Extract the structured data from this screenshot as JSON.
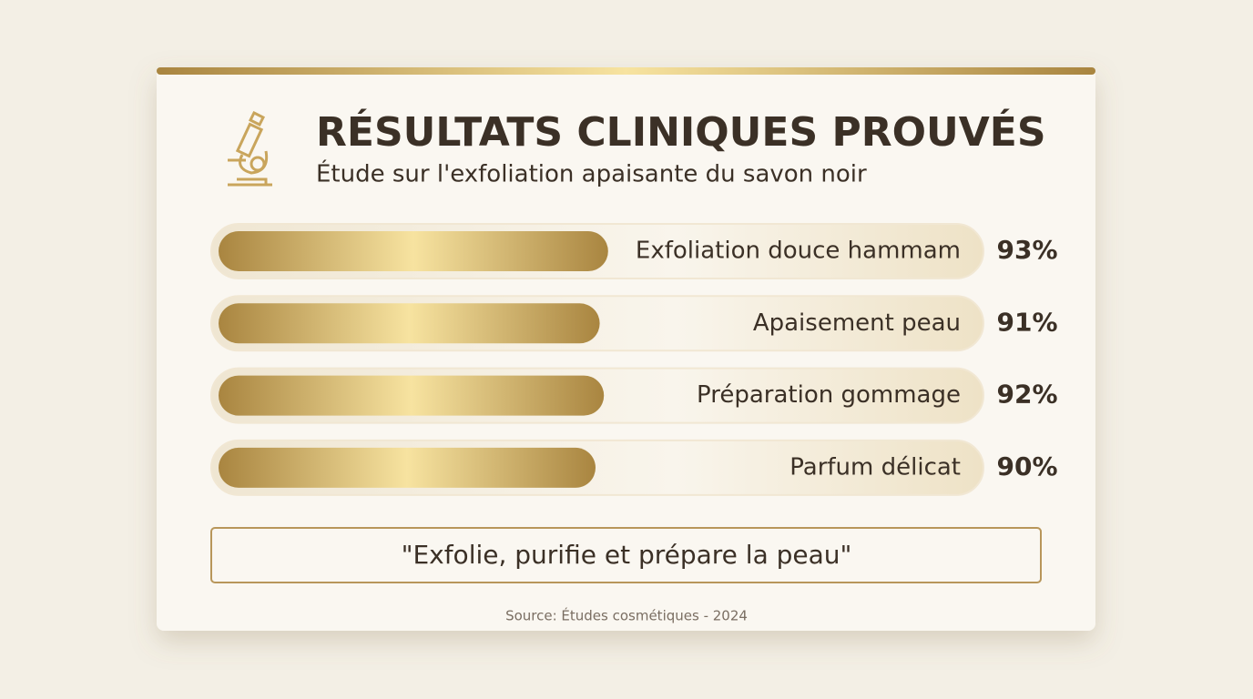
{
  "chart_data": {
    "type": "bar",
    "title": "RÉSULTATS CLINIQUES PROUVÉS",
    "subtitle": "Étude sur l'exfoliation apaisante du savon noir",
    "categories": [
      "Exfoliation douce hammam",
      "Apaisement peau",
      "Préparation gommage",
      "Parfum délicat"
    ],
    "values": [
      93,
      91,
      92,
      90
    ],
    "value_labels": [
      "93%",
      "91%",
      "92%",
      "90%"
    ],
    "color": "#b08d4a",
    "quote": "\"Exfolie, purifie et prépare la peau\"",
    "source": "Source: Études cosmétiques - 2024"
  }
}
